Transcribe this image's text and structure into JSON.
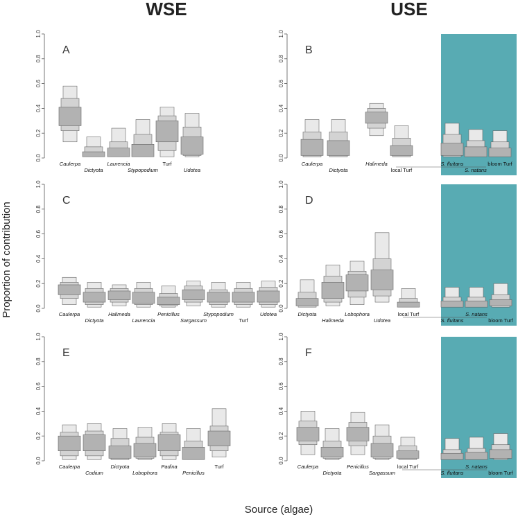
{
  "column_titles": [
    "WSE",
    "USE"
  ],
  "ylabel": "Proportion of contribution",
  "xlabel": "Source (algae)",
  "colors": {
    "bloom_shade": "#58abb3",
    "light_box": "#e9e9e9",
    "mid_box": "#d3d3d3",
    "dark_box": "#b2b2b2",
    "box_edge": "#666666"
  },
  "chart_data": [
    {
      "panel": "A",
      "type": "box",
      "ylim": [
        0,
        1.0
      ],
      "yticks": [
        "0.0",
        "0.2",
        "0.4",
        "0.6",
        "0.8",
        "1.0"
      ],
      "categories": [
        {
          "name": "Caulerpa",
          "italic": true,
          "ci95": [
            0.13,
            0.58
          ],
          "ci75": [
            0.22,
            0.48
          ],
          "ci50": [
            0.26,
            0.41
          ]
        },
        {
          "name": "Dictyota",
          "italic": true,
          "ci95": [
            0.01,
            0.17
          ],
          "ci75": [
            0.01,
            0.09
          ],
          "ci50": [
            0.01,
            0.05
          ]
        },
        {
          "name": "Laurencia",
          "italic": true,
          "ci95": [
            0.01,
            0.24
          ],
          "ci75": [
            0.01,
            0.13
          ],
          "ci50": [
            0.01,
            0.08
          ]
        },
        {
          "name": "Stypopodium",
          "italic": true,
          "ci95": [
            0.01,
            0.31
          ],
          "ci75": [
            0.01,
            0.19
          ],
          "ci50": [
            0.01,
            0.11
          ]
        },
        {
          "name": "Turf",
          "italic": false,
          "ci95": [
            0.01,
            0.41
          ],
          "ci75": [
            0.06,
            0.34
          ],
          "ci50": [
            0.13,
            0.3
          ]
        },
        {
          "name": "Udotea",
          "italic": true,
          "ci95": [
            0.01,
            0.36
          ],
          "ci75": [
            0.02,
            0.25
          ],
          "ci50": [
            0.03,
            0.17
          ]
        }
      ]
    },
    {
      "panel": "B",
      "type": "box",
      "ylim": [
        0,
        1.0
      ],
      "yticks": [
        "0.0",
        "0.2",
        "0.4",
        "0.6",
        "0.8",
        "1.0"
      ],
      "bloom_from_index": 4,
      "categories": [
        {
          "name": "Caulerpa",
          "italic": true,
          "ci95": [
            0.01,
            0.31
          ],
          "ci75": [
            0.01,
            0.21
          ],
          "ci50": [
            0.02,
            0.15
          ]
        },
        {
          "name": "Dictyota",
          "italic": true,
          "ci95": [
            0.01,
            0.31
          ],
          "ci75": [
            0.01,
            0.21
          ],
          "ci50": [
            0.02,
            0.14
          ]
        },
        {
          "name": "Halimeda",
          "italic": true,
          "ci95": [
            0.18,
            0.44
          ],
          "ci75": [
            0.24,
            0.4
          ],
          "ci50": [
            0.28,
            0.37
          ]
        },
        {
          "name": "local Turf",
          "italic": false,
          "ci95": [
            0.01,
            0.26
          ],
          "ci75": [
            0.01,
            0.16
          ],
          "ci50": [
            0.02,
            0.1
          ]
        },
        {
          "name": "S. fluitans",
          "italic": true,
          "ci95": [
            0.01,
            0.28
          ],
          "ci75": [
            0.01,
            0.19
          ],
          "ci50": [
            0.02,
            0.12
          ]
        },
        {
          "name": "S. natans",
          "italic": true,
          "ci95": [
            0.01,
            0.23
          ],
          "ci75": [
            0.01,
            0.14
          ],
          "ci50": [
            0.01,
            0.09
          ]
        },
        {
          "name": "bloom Turf",
          "italic": false,
          "ci95": [
            0.01,
            0.22
          ],
          "ci75": [
            0.01,
            0.13
          ],
          "ci50": [
            0.01,
            0.08
          ]
        }
      ]
    },
    {
      "panel": "C",
      "type": "box",
      "ylim": [
        0,
        1.0
      ],
      "yticks": [
        "0.0",
        "0.2",
        "0.4",
        "0.6",
        "0.8",
        "1.0"
      ],
      "categories": [
        {
          "name": "Caulerpa",
          "italic": true,
          "ci95": [
            0.03,
            0.25
          ],
          "ci75": [
            0.08,
            0.21
          ],
          "ci50": [
            0.11,
            0.19
          ]
        },
        {
          "name": "Dictyota",
          "italic": true,
          "ci95": [
            0.01,
            0.21
          ],
          "ci75": [
            0.03,
            0.16
          ],
          "ci50": [
            0.05,
            0.13
          ]
        },
        {
          "name": "Halimeda",
          "italic": true,
          "ci95": [
            0.02,
            0.19
          ],
          "ci75": [
            0.05,
            0.16
          ],
          "ci50": [
            0.07,
            0.14
          ]
        },
        {
          "name": "Laurencia",
          "italic": true,
          "ci95": [
            0.01,
            0.21
          ],
          "ci75": [
            0.03,
            0.16
          ],
          "ci50": [
            0.04,
            0.13
          ]
        },
        {
          "name": "Penicillus",
          "italic": true,
          "ci95": [
            0.01,
            0.18
          ],
          "ci75": [
            0.02,
            0.12
          ],
          "ci50": [
            0.03,
            0.09
          ]
        },
        {
          "name": "Sargassum",
          "italic": true,
          "ci95": [
            0.02,
            0.22
          ],
          "ci75": [
            0.05,
            0.18
          ],
          "ci50": [
            0.07,
            0.15
          ]
        },
        {
          "name": "Stypopodium",
          "italic": true,
          "ci95": [
            0.01,
            0.21
          ],
          "ci75": [
            0.03,
            0.15
          ],
          "ci50": [
            0.05,
            0.13
          ]
        },
        {
          "name": "Turf",
          "italic": false,
          "ci95": [
            0.01,
            0.21
          ],
          "ci75": [
            0.03,
            0.16
          ],
          "ci50": [
            0.05,
            0.13
          ]
        },
        {
          "name": "Udotea",
          "italic": true,
          "ci95": [
            0.01,
            0.22
          ],
          "ci75": [
            0.03,
            0.17
          ],
          "ci50": [
            0.05,
            0.14
          ]
        }
      ]
    },
    {
      "panel": "D",
      "type": "box",
      "ylim": [
        0,
        1.0
      ],
      "yticks": [
        "0.0",
        "0.2",
        "0.4",
        "0.6",
        "0.8",
        "1.0"
      ],
      "bloom_from_index": 5,
      "categories": [
        {
          "name": "Dictyota",
          "italic": true,
          "ci95": [
            0.01,
            0.23
          ],
          "ci75": [
            0.01,
            0.13
          ],
          "ci50": [
            0.02,
            0.08
          ]
        },
        {
          "name": "Halimeda",
          "italic": true,
          "ci95": [
            0.02,
            0.35
          ],
          "ci75": [
            0.05,
            0.26
          ],
          "ci50": [
            0.08,
            0.21
          ]
        },
        {
          "name": "Lobophora",
          "italic": true,
          "ci95": [
            0.03,
            0.38
          ],
          "ci75": [
            0.09,
            0.3
          ],
          "ci50": [
            0.14,
            0.27
          ]
        },
        {
          "name": "Udotea",
          "italic": true,
          "ci95": [
            0.05,
            0.61
          ],
          "ci75": [
            0.1,
            0.4
          ],
          "ci50": [
            0.15,
            0.31
          ]
        },
        {
          "name": "local Turf",
          "italic": false,
          "ci95": [
            0.01,
            0.16
          ],
          "ci75": [
            0.01,
            0.08
          ],
          "ci50": [
            0.01,
            0.05
          ]
        },
        {
          "name": "S. fluitans",
          "italic": true,
          "ci95": [
            0.01,
            0.17
          ],
          "ci75": [
            0.01,
            0.09
          ],
          "ci50": [
            0.01,
            0.06
          ]
        },
        {
          "name": "S. natans",
          "italic": true,
          "ci95": [
            0.01,
            0.17
          ],
          "ci75": [
            0.01,
            0.09
          ],
          "ci50": [
            0.01,
            0.06
          ]
        },
        {
          "name": "bloom Turf",
          "italic": false,
          "ci95": [
            0.01,
            0.2
          ],
          "ci75": [
            0.01,
            0.11
          ],
          "ci50": [
            0.02,
            0.07
          ]
        }
      ]
    },
    {
      "panel": "E",
      "type": "box",
      "ylim": [
        0,
        1.0
      ],
      "yticks": [
        "0.0",
        "0.2",
        "0.4",
        "0.6",
        "0.8",
        "1.0"
      ],
      "categories": [
        {
          "name": "Caulerpa",
          "italic": true,
          "ci95": [
            0.01,
            0.29
          ],
          "ci75": [
            0.04,
            0.23
          ],
          "ci50": [
            0.08,
            0.2
          ]
        },
        {
          "name": "Codium",
          "italic": true,
          "ci95": [
            0.01,
            0.3
          ],
          "ci75": [
            0.04,
            0.24
          ],
          "ci50": [
            0.08,
            0.21
          ]
        },
        {
          "name": "Dictyota",
          "italic": true,
          "ci95": [
            0.01,
            0.26
          ],
          "ci75": [
            0.01,
            0.18
          ],
          "ci50": [
            0.02,
            0.12
          ]
        },
        {
          "name": "Lobophora",
          "italic": true,
          "ci95": [
            0.01,
            0.27
          ],
          "ci75": [
            0.02,
            0.19
          ],
          "ci50": [
            0.03,
            0.14
          ]
        },
        {
          "name": "Padina",
          "italic": true,
          "ci95": [
            0.01,
            0.3
          ],
          "ci75": [
            0.04,
            0.23
          ],
          "ci50": [
            0.08,
            0.21
          ]
        },
        {
          "name": "Penicillus",
          "italic": true,
          "ci95": [
            0.01,
            0.26
          ],
          "ci75": [
            0.01,
            0.16
          ],
          "ci50": [
            0.01,
            0.11
          ]
        },
        {
          "name": "Turf",
          "italic": false,
          "ci95": [
            0.03,
            0.42
          ],
          "ci75": [
            0.08,
            0.28
          ],
          "ci50": [
            0.12,
            0.24
          ]
        }
      ]
    },
    {
      "panel": "F",
      "type": "box",
      "ylim": [
        0,
        1.0
      ],
      "yticks": [
        "0.0",
        "0.2",
        "0.4",
        "0.6",
        "0.8",
        "1.0"
      ],
      "bloom_from_index": 5,
      "categories": [
        {
          "name": "Caulerpa",
          "italic": true,
          "ci95": [
            0.05,
            0.4
          ],
          "ci75": [
            0.13,
            0.32
          ],
          "ci50": [
            0.16,
            0.27
          ]
        },
        {
          "name": "Dictyota",
          "italic": true,
          "ci95": [
            0.01,
            0.26
          ],
          "ci75": [
            0.02,
            0.16
          ],
          "ci50": [
            0.03,
            0.11
          ]
        },
        {
          "name": "Penicillus",
          "italic": true,
          "ci95": [
            0.05,
            0.39
          ],
          "ci75": [
            0.12,
            0.31
          ],
          "ci50": [
            0.16,
            0.27
          ]
        },
        {
          "name": "Sargassum",
          "italic": true,
          "ci95": [
            0.01,
            0.29
          ],
          "ci75": [
            0.02,
            0.2
          ],
          "ci50": [
            0.03,
            0.14
          ]
        },
        {
          "name": "local Turf",
          "italic": false,
          "ci95": [
            0.01,
            0.19
          ],
          "ci75": [
            0.01,
            0.12
          ],
          "ci50": [
            0.02,
            0.08
          ]
        },
        {
          "name": "S. fluitans",
          "italic": true,
          "ci95": [
            0.01,
            0.18
          ],
          "ci75": [
            0.01,
            0.09
          ],
          "ci50": [
            0.01,
            0.06
          ]
        },
        {
          "name": "S. natans",
          "italic": true,
          "ci95": [
            0.01,
            0.19
          ],
          "ci75": [
            0.01,
            0.1
          ],
          "ci50": [
            0.01,
            0.07
          ]
        },
        {
          "name": "bloom Turf",
          "italic": false,
          "ci95": [
            0.01,
            0.22
          ],
          "ci75": [
            0.02,
            0.13
          ],
          "ci50": [
            0.02,
            0.09
          ]
        }
      ]
    }
  ]
}
